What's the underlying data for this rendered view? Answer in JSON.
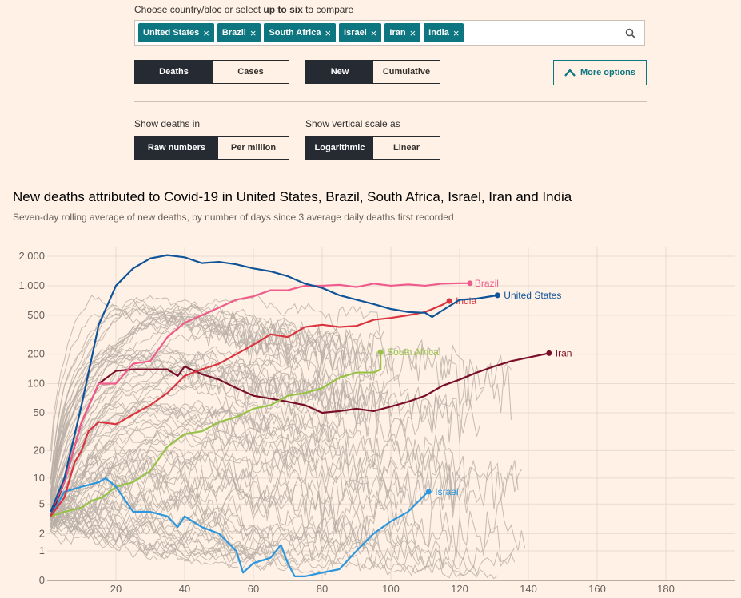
{
  "controls": {
    "prompt_pre": "Choose country/bloc or select ",
    "prompt_bold": "up to six",
    "prompt_post": " to compare",
    "chips": [
      "United States",
      "Brazil",
      "South Africa",
      "Israel",
      "Iran",
      "India"
    ],
    "chip_close": "×",
    "metric": [
      "Deaths",
      "Cases"
    ],
    "mode": [
      "New",
      "Cumulative"
    ],
    "more_options": "More options",
    "show_in_label": "Show deaths in",
    "show_in": [
      "Raw numbers",
      "Per million"
    ],
    "scale_label": "Show vertical scale as",
    "scale": [
      "Logarithmic",
      "Linear"
    ]
  },
  "chart_data": {
    "type": "line",
    "title": "New deaths attributed to Covid-19 in United States, Brazil, South Africa, Israel, Iran and India",
    "subtitle": "Seven-day rolling average of new deaths, by number of days since 3 average daily deaths first recorded",
    "xlabel": "",
    "ylabel": "",
    "xlim": [
      0,
      200
    ],
    "ylim": [
      0,
      2500
    ],
    "yscale": "log(1+y)",
    "xticks": [
      "20",
      "40",
      "60",
      "80",
      "100",
      "120",
      "140",
      "160",
      "180"
    ],
    "yticks": [
      {
        "v": 0,
        "t": "0"
      },
      {
        "v": 1,
        "t": "1"
      },
      {
        "v": 2,
        "t": "2"
      },
      {
        "v": 5,
        "t": "5"
      },
      {
        "v": 10,
        "t": "10"
      },
      {
        "v": 20,
        "t": "20"
      },
      {
        "v": 50,
        "t": "50"
      },
      {
        "v": 100,
        "t": "100"
      },
      {
        "v": 200,
        "t": "200"
      },
      {
        "v": 500,
        "t": "500"
      },
      {
        "v": 1000,
        "t": "1,000"
      },
      {
        "v": 2000,
        "t": "2,000"
      }
    ],
    "background_series_color": "#b8aea5",
    "series": [
      {
        "name": "Iran",
        "color": "#7a0e2a",
        "points": [
          [
            1,
            3.5
          ],
          [
            5,
            9
          ],
          [
            10,
            40
          ],
          [
            15,
            100
          ],
          [
            20,
            135
          ],
          [
            25,
            140
          ],
          [
            30,
            140
          ],
          [
            35,
            140
          ],
          [
            38,
            120
          ],
          [
            40,
            150
          ],
          [
            45,
            125
          ],
          [
            50,
            110
          ],
          [
            55,
            90
          ],
          [
            60,
            75
          ],
          [
            65,
            70
          ],
          [
            70,
            65
          ],
          [
            75,
            60
          ],
          [
            80,
            50
          ],
          [
            85,
            52
          ],
          [
            90,
            55
          ],
          [
            95,
            52
          ],
          [
            100,
            58
          ],
          [
            105,
            65
          ],
          [
            110,
            75
          ],
          [
            115,
            95
          ],
          [
            120,
            110
          ],
          [
            125,
            130
          ],
          [
            130,
            150
          ],
          [
            135,
            170
          ],
          [
            140,
            185
          ],
          [
            146,
            205
          ]
        ]
      },
      {
        "name": "South Africa",
        "color": "#96c345",
        "points": [
          [
            1,
            3.5
          ],
          [
            5,
            4
          ],
          [
            10,
            4.5
          ],
          [
            13,
            5.5
          ],
          [
            16,
            6
          ],
          [
            20,
            8
          ],
          [
            25,
            9
          ],
          [
            30,
            12
          ],
          [
            35,
            22
          ],
          [
            40,
            30
          ],
          [
            45,
            32
          ],
          [
            50,
            40
          ],
          [
            55,
            45
          ],
          [
            60,
            55
          ],
          [
            65,
            60
          ],
          [
            70,
            75
          ],
          [
            75,
            80
          ],
          [
            80,
            90
          ],
          [
            85,
            115
          ],
          [
            90,
            130
          ],
          [
            95,
            130
          ],
          [
            97,
            140
          ],
          [
            97,
            210
          ]
        ]
      },
      {
        "name": "Israel",
        "color": "#2c97de",
        "points": [
          [
            1,
            3.5
          ],
          [
            5,
            7
          ],
          [
            10,
            8
          ],
          [
            15,
            9
          ],
          [
            17,
            10
          ],
          [
            20,
            8
          ],
          [
            25,
            4
          ],
          [
            30,
            4
          ],
          [
            35,
            3.5
          ],
          [
            38,
            2.5
          ],
          [
            40,
            3.5
          ],
          [
            45,
            2.5
          ],
          [
            50,
            2
          ],
          [
            55,
            1
          ],
          [
            57,
            0.2
          ],
          [
            60,
            0.5
          ],
          [
            65,
            0.7
          ],
          [
            68,
            1.3
          ],
          [
            70,
            0.5
          ],
          [
            72,
            0.1
          ],
          [
            75,
            0.1
          ],
          [
            80,
            0.2
          ],
          [
            85,
            0.3
          ],
          [
            90,
            1
          ],
          [
            95,
            2
          ],
          [
            100,
            3
          ],
          [
            105,
            4
          ],
          [
            110,
            6.5
          ],
          [
            111,
            7
          ]
        ]
      },
      {
        "name": "India",
        "color": "#d9343f",
        "points": [
          [
            1,
            3.5
          ],
          [
            5,
            6
          ],
          [
            8,
            15
          ],
          [
            10,
            20
          ],
          [
            12,
            32
          ],
          [
            15,
            40
          ],
          [
            20,
            38
          ],
          [
            25,
            48
          ],
          [
            30,
            60
          ],
          [
            35,
            80
          ],
          [
            40,
            120
          ],
          [
            45,
            140
          ],
          [
            50,
            160
          ],
          [
            55,
            200
          ],
          [
            60,
            250
          ],
          [
            65,
            320
          ],
          [
            70,
            300
          ],
          [
            75,
            380
          ],
          [
            80,
            400
          ],
          [
            85,
            380
          ],
          [
            90,
            390
          ],
          [
            95,
            450
          ],
          [
            100,
            470
          ],
          [
            105,
            500
          ],
          [
            110,
            540
          ],
          [
            115,
            640
          ],
          [
            117,
            700
          ]
        ]
      },
      {
        "name": "Brazil",
        "color": "#ef5b8b",
        "points": [
          [
            1,
            4
          ],
          [
            5,
            9
          ],
          [
            10,
            40
          ],
          [
            15,
            100
          ],
          [
            20,
            100
          ],
          [
            25,
            160
          ],
          [
            30,
            170
          ],
          [
            35,
            300
          ],
          [
            40,
            420
          ],
          [
            45,
            500
          ],
          [
            50,
            600
          ],
          [
            55,
            720
          ],
          [
            60,
            780
          ],
          [
            65,
            900
          ],
          [
            70,
            900
          ],
          [
            75,
            1000
          ],
          [
            80,
            1000
          ],
          [
            85,
            1020
          ],
          [
            90,
            970
          ],
          [
            95,
            1050
          ],
          [
            100,
            1000
          ],
          [
            105,
            1030
          ],
          [
            110,
            1000
          ],
          [
            115,
            1050
          ],
          [
            120,
            1060
          ],
          [
            123,
            1060
          ]
        ]
      },
      {
        "name": "United States",
        "color": "#0f5499",
        "points": [
          [
            1,
            4
          ],
          [
            5,
            10
          ],
          [
            10,
            60
          ],
          [
            15,
            400
          ],
          [
            20,
            1000
          ],
          [
            25,
            1500
          ],
          [
            30,
            1900
          ],
          [
            35,
            2050
          ],
          [
            40,
            1950
          ],
          [
            45,
            1700
          ],
          [
            50,
            1750
          ],
          [
            55,
            1650
          ],
          [
            60,
            1500
          ],
          [
            65,
            1400
          ],
          [
            70,
            1250
          ],
          [
            75,
            1050
          ],
          [
            80,
            950
          ],
          [
            85,
            800
          ],
          [
            90,
            720
          ],
          [
            95,
            650
          ],
          [
            100,
            580
          ],
          [
            105,
            540
          ],
          [
            110,
            530
          ],
          [
            112,
            480
          ],
          [
            115,
            560
          ],
          [
            120,
            720
          ],
          [
            125,
            740
          ],
          [
            131,
            800
          ]
        ]
      }
    ]
  }
}
